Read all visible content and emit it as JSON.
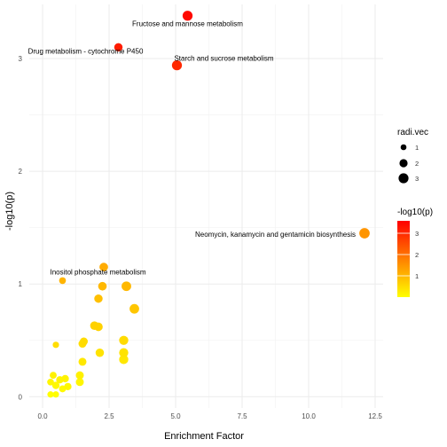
{
  "chart_data": {
    "type": "scatter",
    "xlabel": "Enrichment Factor",
    "ylabel": "-log10(p)",
    "xlim": [
      -0.5,
      12.8
    ],
    "ylim": [
      -0.1,
      3.48
    ],
    "x_ticks": [
      0.0,
      2.5,
      5.0,
      7.5,
      10.0,
      12.5
    ],
    "x_tick_labels": [
      "0.0",
      "2.5",
      "5.0",
      "7.5",
      "10.0",
      "12.5"
    ],
    "y_ticks": [
      0,
      1,
      2,
      3
    ],
    "y_tick_labels": [
      "0",
      "1",
      "2",
      "3"
    ],
    "grid": true,
    "color_scale": {
      "low": "#FFFF00",
      "high": "#FF0000",
      "min": 0,
      "max": 3.5
    },
    "size_scale": {
      "min": 0.5,
      "max": 3.5
    },
    "points": [
      {
        "x": 5.45,
        "y": 3.38,
        "size": 3.0,
        "label": "Fructose and mannose metabolism"
      },
      {
        "x": 2.85,
        "y": 3.1,
        "size": 2.2,
        "label": "Drug metabolism - cytochrome P450"
      },
      {
        "x": 5.05,
        "y": 2.94,
        "size": 3.0,
        "label": "Starch and sucrose metabolism"
      },
      {
        "x": 12.1,
        "y": 1.45,
        "size": 3.2,
        "label": "Neomycin, kanamycin and gentamicin biosynthesis"
      },
      {
        "x": 0.75,
        "y": 1.03,
        "size": 1.4,
        "label": "Inositol phosphate metabolism"
      },
      {
        "x": 2.3,
        "y": 1.15,
        "size": 2.3,
        "label": ""
      },
      {
        "x": 2.25,
        "y": 0.98,
        "size": 2.3,
        "label": ""
      },
      {
        "x": 3.15,
        "y": 0.98,
        "size": 2.8,
        "label": ""
      },
      {
        "x": 2.1,
        "y": 0.87,
        "size": 2.2,
        "label": ""
      },
      {
        "x": 3.45,
        "y": 0.78,
        "size": 2.8,
        "label": ""
      },
      {
        "x": 1.95,
        "y": 0.63,
        "size": 2.3,
        "label": ""
      },
      {
        "x": 2.1,
        "y": 0.62,
        "size": 2.3,
        "label": ""
      },
      {
        "x": 1.55,
        "y": 0.49,
        "size": 2.0,
        "label": ""
      },
      {
        "x": 1.5,
        "y": 0.47,
        "size": 2.0,
        "label": ""
      },
      {
        "x": 3.05,
        "y": 0.5,
        "size": 2.6,
        "label": ""
      },
      {
        "x": 0.5,
        "y": 0.46,
        "size": 1.2,
        "label": ""
      },
      {
        "x": 2.15,
        "y": 0.39,
        "size": 2.2,
        "label": ""
      },
      {
        "x": 3.05,
        "y": 0.39,
        "size": 2.6,
        "label": ""
      },
      {
        "x": 3.05,
        "y": 0.33,
        "size": 2.6,
        "label": ""
      },
      {
        "x": 1.5,
        "y": 0.31,
        "size": 2.0,
        "label": ""
      },
      {
        "x": 0.4,
        "y": 0.19,
        "size": 1.5,
        "label": ""
      },
      {
        "x": 1.4,
        "y": 0.19,
        "size": 2.0,
        "label": ""
      },
      {
        "x": 0.65,
        "y": 0.15,
        "size": 1.7,
        "label": ""
      },
      {
        "x": 0.85,
        "y": 0.16,
        "size": 1.7,
        "label": ""
      },
      {
        "x": 1.4,
        "y": 0.13,
        "size": 2.0,
        "label": ""
      },
      {
        "x": 0.3,
        "y": 0.13,
        "size": 1.4,
        "label": ""
      },
      {
        "x": 0.5,
        "y": 0.1,
        "size": 1.7,
        "label": ""
      },
      {
        "x": 0.95,
        "y": 0.09,
        "size": 1.7,
        "label": ""
      },
      {
        "x": 0.75,
        "y": 0.07,
        "size": 1.5,
        "label": ""
      },
      {
        "x": 0.3,
        "y": 0.02,
        "size": 1.2,
        "label": ""
      },
      {
        "x": 0.5,
        "y": 0.02,
        "size": 1.2,
        "label": ""
      }
    ],
    "legends": {
      "size": {
        "title": "radi.vec",
        "labels": [
          "1",
          "2",
          "3"
        ],
        "values": [
          1,
          2,
          3
        ]
      },
      "color": {
        "title": "-log10(p)",
        "labels": [
          "1",
          "2",
          "3"
        ],
        "values": [
          1,
          2,
          3
        ]
      }
    }
  }
}
